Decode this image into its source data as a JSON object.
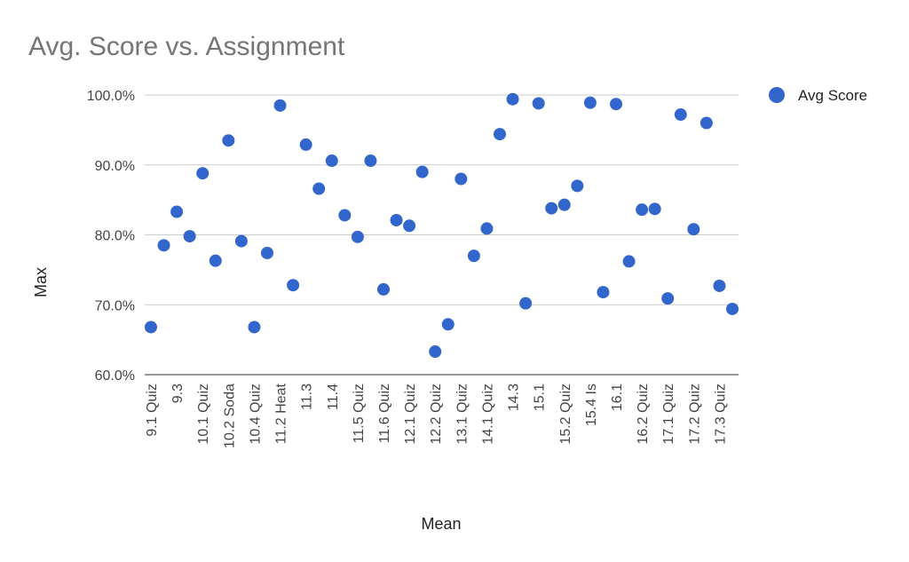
{
  "chart_data": {
    "type": "scatter",
    "title": "Avg. Score vs. Assignment",
    "xlabel": "Mean",
    "ylabel": "Max",
    "ylim": [
      0.6,
      1.0
    ],
    "yticks": [
      "60.0%",
      "70.0%",
      "80.0%",
      "90.0%",
      "100.0%"
    ],
    "ytick_values": [
      0.6,
      0.7,
      0.8,
      0.9,
      1.0
    ],
    "grid": true,
    "legend_position": "top-right",
    "series": [
      {
        "name": "Avg Score",
        "color": "#3366cc",
        "values": [
          0.668,
          0.785,
          0.833,
          0.798,
          0.888,
          0.763,
          0.935,
          0.791,
          0.668,
          0.774,
          0.985,
          0.728,
          0.929,
          0.866,
          0.906,
          0.828,
          0.797,
          0.906,
          0.722,
          0.821,
          0.813,
          0.89,
          0.633,
          0.672,
          0.88,
          0.77,
          0.809,
          0.944,
          0.994,
          0.702,
          0.988,
          0.838,
          0.843,
          0.87,
          0.989,
          0.718,
          0.987,
          0.762,
          0.836,
          0.837,
          0.709,
          0.972,
          0.808,
          0.96,
          0.727,
          0.694
        ]
      }
    ],
    "categories": [
      "9.1 Quiz",
      "",
      "9.3",
      "",
      "10.1 Quiz",
      "",
      "10.2 Soda",
      "",
      "10.4 Quiz",
      "",
      "11.2 Heat",
      "",
      "11.3",
      "",
      "11.4",
      "",
      "11.5 Quiz",
      "",
      "11.6 Quiz",
      "",
      "12.1 Quiz",
      "",
      "12.2 Quiz",
      "",
      "13.1 Quiz",
      "",
      "14.1 Quiz",
      "",
      "14.3",
      "",
      "15.1",
      "",
      "15.2 Quiz",
      "",
      "15.4 Is",
      "",
      "16.1",
      "",
      "16.2 Quiz",
      "",
      "17.1 Quiz",
      "",
      "17.2 Quiz",
      "",
      "17.3 Quiz",
      ""
    ]
  }
}
